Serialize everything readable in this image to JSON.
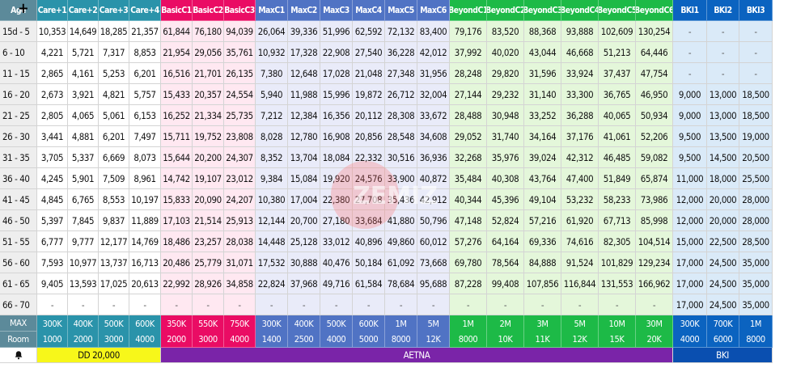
{
  "header": {
    "age_label": "Age",
    "plus_icon": "+",
    "columns": [
      "Care+1",
      "Care+2",
      "Care+3",
      "Care+4",
      "BasicC1",
      "BasicC2",
      "BasicC3",
      "MaxC1",
      "MaxC2",
      "MaxC3",
      "MaxC4",
      "MaxC5",
      "MaxC6",
      "BeyondC1",
      "BeyondC2",
      "BeyondC3",
      "BeyondC4",
      "BeyondC5",
      "BeyondC6",
      "BKI1",
      "BKI2",
      "BKI3"
    ]
  },
  "rows": [
    {
      "age": "15d - 5",
      "values": [
        "10,353",
        "14,649",
        "18,285",
        "21,357",
        "61,844",
        "76,180",
        "94,039",
        "26,064",
        "39,336",
        "51,996",
        "62,592",
        "72,132",
        "83,400",
        "79,176",
        "83,520",
        "88,368",
        "93,888",
        "102,609",
        "130,254",
        "-",
        "-",
        "-"
      ]
    },
    {
      "age": "6 - 10",
      "values": [
        "4,221",
        "5,721",
        "7,317",
        "8,853",
        "21,954",
        "29,056",
        "35,761",
        "10,932",
        "17,328",
        "22,908",
        "27,540",
        "36,228",
        "42,012",
        "37,992",
        "40,020",
        "43,044",
        "46,668",
        "51,213",
        "64,446",
        "-",
        "-",
        "-"
      ]
    },
    {
      "age": "11 - 15",
      "values": [
        "2,865",
        "4,161",
        "5,253",
        "6,201",
        "16,516",
        "21,701",
        "26,135",
        "7,380",
        "12,648",
        "17,028",
        "21,048",
        "27,348",
        "31,956",
        "28,248",
        "29,820",
        "31,596",
        "33,924",
        "37,437",
        "47,754",
        "-",
        "-",
        "-"
      ]
    },
    {
      "age": "16 - 20",
      "values": [
        "2,673",
        "3,921",
        "4,821",
        "5,757",
        "15,433",
        "20,357",
        "24,554",
        "5,940",
        "11,988",
        "15,996",
        "19,872",
        "26,712",
        "32,004",
        "27,144",
        "29,232",
        "31,140",
        "33,300",
        "36,765",
        "46,950",
        "9,000",
        "13,000",
        "18,500"
      ]
    },
    {
      "age": "21 - 25",
      "values": [
        "2,805",
        "4,065",
        "5,061",
        "6,153",
        "16,252",
        "21,334",
        "25,735",
        "7,212",
        "12,384",
        "16,356",
        "20,112",
        "28,308",
        "33,672",
        "28,488",
        "30,948",
        "33,252",
        "36,288",
        "40,065",
        "50,934",
        "9,000",
        "13,000",
        "18,500"
      ]
    },
    {
      "age": "26 - 30",
      "values": [
        "3,441",
        "4,881",
        "6,201",
        "7,497",
        "15,711",
        "19,752",
        "23,808",
        "8,028",
        "12,780",
        "16,908",
        "20,856",
        "28,548",
        "34,608",
        "29,052",
        "31,740",
        "34,164",
        "37,176",
        "41,061",
        "52,206",
        "9,500",
        "13,500",
        "19,000"
      ]
    },
    {
      "age": "31 - 35",
      "values": [
        "3,705",
        "5,337",
        "6,669",
        "8,073",
        "15,644",
        "20,200",
        "24,307",
        "8,352",
        "13,704",
        "18,084",
        "22,332",
        "30,516",
        "36,936",
        "32,268",
        "35,976",
        "39,024",
        "42,312",
        "46,485",
        "59,082",
        "9,500",
        "14,500",
        "20,500"
      ]
    },
    {
      "age": "36 - 40",
      "values": [
        "4,245",
        "5,901",
        "7,509",
        "8,961",
        "14,742",
        "19,107",
        "23,012",
        "9,384",
        "15,084",
        "19,920",
        "24,576",
        "33,900",
        "40,872",
        "35,484",
        "40,308",
        "43,764",
        "47,400",
        "51,849",
        "65,874",
        "11,000",
        "18,000",
        "25,500"
      ]
    },
    {
      "age": "41 - 45",
      "values": [
        "4,845",
        "6,765",
        "8,553",
        "10,197",
        "15,833",
        "20,090",
        "24,207",
        "10,380",
        "17,004",
        "22,380",
        "27,708",
        "35,436",
        "42,912",
        "40,344",
        "45,396",
        "49,104",
        "53,232",
        "58,233",
        "73,986",
        "12,000",
        "20,000",
        "28,000"
      ]
    },
    {
      "age": "46 - 50",
      "values": [
        "5,397",
        "7,845",
        "9,837",
        "11,889",
        "17,103",
        "21,514",
        "25,913",
        "12,144",
        "20,700",
        "27,180",
        "33,684",
        "41,880",
        "50,796",
        "47,148",
        "52,824",
        "57,216",
        "61,920",
        "67,713",
        "85,998",
        "12,000",
        "20,000",
        "28,000"
      ]
    },
    {
      "age": "51 - 55",
      "values": [
        "6,777",
        "9,777",
        "12,177",
        "14,769",
        "18,486",
        "23,257",
        "28,038",
        "14,448",
        "25,128",
        "33,012",
        "40,896",
        "49,860",
        "60,012",
        "57,276",
        "64,164",
        "69,336",
        "74,616",
        "82,305",
        "104,514",
        "15,000",
        "22,500",
        "28,500"
      ]
    },
    {
      "age": "56 - 60",
      "values": [
        "7,593",
        "10,977",
        "13,737",
        "16,713",
        "20,486",
        "25,779",
        "31,071",
        "17,532",
        "30,888",
        "40,476",
        "50,184",
        "61,092",
        "73,668",
        "69,780",
        "78,564",
        "84,888",
        "91,524",
        "101,829",
        "129,234",
        "17,000",
        "24,500",
        "35,000"
      ]
    },
    {
      "age": "61 - 65",
      "values": [
        "9,405",
        "13,593",
        "17,025",
        "20,613",
        "22,992",
        "28,926",
        "34,858",
        "22,824",
        "37,968",
        "49,716",
        "61,584",
        "78,684",
        "95,688",
        "87,228",
        "99,408",
        "107,856",
        "116,844",
        "131,553",
        "166,962",
        "17,000",
        "24,500",
        "35,000"
      ]
    },
    {
      "age": "66 - 70",
      "values": [
        "-",
        "-",
        "-",
        "-",
        "-",
        "-",
        "-",
        "-",
        "-",
        "-",
        "-",
        "-",
        "-",
        "-",
        "-",
        "-",
        "-",
        "-",
        "-",
        "17,000",
        "24,500",
        "35,000"
      ]
    }
  ],
  "footer": {
    "max_label": "MAX",
    "room_label": "Room",
    "max_values": [
      "300K",
      "400K",
      "500K",
      "600K",
      "350K",
      "550K",
      "750K",
      "300K",
      "400K",
      "500K",
      "600K",
      "1M",
      "5M",
      "1M",
      "2M",
      "3M",
      "5M",
      "10M",
      "30M",
      "300K",
      "700K",
      "1M"
    ],
    "room_values": [
      "1000",
      "2000",
      "3000",
      "4000",
      "2000",
      "3000",
      "4000",
      "1400",
      "2500",
      "4000",
      "5000",
      "8000",
      "12K",
      "8000",
      "10K",
      "11K",
      "12K",
      "15K",
      "20K",
      "4000",
      "6000",
      "8000"
    ],
    "bell_icon": "bell-icon",
    "group_dd": "DD 20,000",
    "group_aetna": "AETNA",
    "group_bki": "BKI"
  },
  "colors": {
    "age_header": "#5c8a9a",
    "care_header": "#2a93aa",
    "basic_header": "#ea0c64",
    "max_header": "#5073c4",
    "beyond_header": "#1dba47",
    "bki_header": "#0b63c0",
    "group_dd": "#f7f71a",
    "group_aetna": "#7a24a8",
    "group_bki": "#0a4fb0"
  },
  "watermark_text": "ZEMIZ"
}
